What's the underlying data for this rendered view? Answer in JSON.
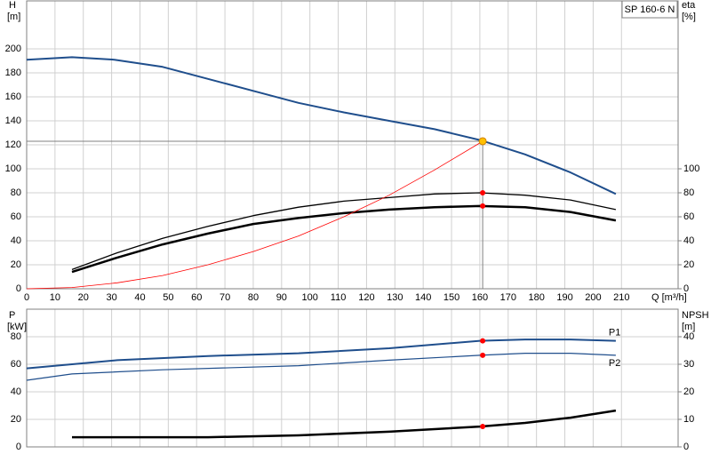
{
  "chart_data": [
    {
      "type": "line",
      "label": "SP 160-6 N",
      "ylabel": [
        "H",
        "[m]"
      ],
      "y2label": [
        "eta",
        "[%]"
      ],
      "xlabel": "Q [m³/h]",
      "xlim": [
        0,
        230
      ],
      "ylim": [
        0,
        240
      ],
      "y2lim": [
        0,
        240
      ],
      "grid": true,
      "xtick_labels": true,
      "xticks": [
        0,
        10,
        20,
        30,
        40,
        50,
        60,
        70,
        80,
        90,
        100,
        110,
        120,
        130,
        140,
        150,
        160,
        170,
        180,
        190,
        200,
        210
      ],
      "yticks": [
        0,
        20,
        40,
        60,
        80,
        100,
        120,
        140,
        160,
        180,
        200
      ],
      "y2ticks": [
        0,
        20,
        40,
        60,
        80,
        100
      ],
      "series": [
        {
          "color": "#1f4e8c",
          "x": [
            0,
            16,
            31,
            48,
            64,
            80,
            96,
            112,
            128,
            144,
            160,
            176,
            192,
            208
          ],
          "values": [
            191,
            193,
            191,
            185,
            175,
            165,
            155,
            147,
            140,
            133,
            124,
            112,
            97,
            79
          ]
        },
        {
          "color": "#000000",
          "axis": "y2",
          "x": [
            16,
            32,
            48,
            64,
            80,
            96,
            112,
            128,
            144,
            160,
            176,
            192,
            208
          ],
          "values": [
            16,
            30,
            42,
            52,
            61,
            68,
            73,
            76,
            79,
            80,
            78,
            74,
            66
          ]
        },
        {
          "color": "#000000",
          "axis": "y2",
          "x": [
            16,
            32,
            48,
            64,
            80,
            96,
            112,
            128,
            144,
            160,
            176,
            192,
            208
          ],
          "values": [
            14,
            26,
            37,
            46,
            54,
            59,
            63,
            66,
            68,
            69,
            68,
            64,
            57
          ]
        },
        {
          "color": "#ff0000",
          "x": [
            0,
            16,
            32,
            48,
            64,
            80,
            96,
            112,
            128,
            144,
            161
          ],
          "values": [
            0,
            1,
            5,
            11,
            20,
            31,
            44,
            60,
            78,
            99,
            123
          ]
        }
      ],
      "points": [
        {
          "x": 161,
          "y": 123,
          "color": "#ffc000",
          "guide": true
        },
        {
          "x": 161,
          "y": 80,
          "color": "#ff0000",
          "axis": "y2"
        },
        {
          "x": 161,
          "y": 69,
          "color": "#ff0000",
          "axis": "y2"
        }
      ]
    },
    {
      "type": "line",
      "ylabel": [
        "P",
        "[kW]"
      ],
      "y2label": [
        "NPSH",
        "[m]"
      ],
      "xlim": [
        0,
        230
      ],
      "ylim": [
        0,
        100
      ],
      "y2lim": [
        0,
        50
      ],
      "grid": true,
      "xtick_labels": false,
      "xticks": [
        0,
        10,
        20,
        30,
        40,
        50,
        60,
        70,
        80,
        90,
        100,
        110,
        120,
        130,
        140,
        150,
        160,
        170,
        180,
        190,
        200,
        210
      ],
      "yticks": [
        0,
        20,
        40,
        60,
        80
      ],
      "y2ticks": [
        0,
        10,
        20,
        30,
        40
      ],
      "series": [
        {
          "name": "P1",
          "color": "#1f4e8c",
          "x": [
            0,
            16,
            32,
            64,
            96,
            128,
            160,
            176,
            192,
            208
          ],
          "values": [
            57,
            60,
            63,
            66,
            68,
            71.6,
            77,
            78,
            78,
            77
          ]
        },
        {
          "name": "P2",
          "color": "#1f4e8c",
          "x": [
            0,
            16,
            48,
            96,
            128,
            160,
            176,
            192,
            208
          ],
          "values": [
            48.4,
            53,
            56,
            59,
            63,
            66.5,
            68,
            68,
            66.5
          ]
        },
        {
          "color": "#000000",
          "axis": "y2",
          "x": [
            16,
            64,
            96,
            128,
            160,
            176,
            192,
            208
          ],
          "values": [
            3.5,
            3.5,
            4.2,
            5.5,
            7.4,
            8.7,
            10.6,
            13.2
          ]
        }
      ],
      "points": [
        {
          "x": 161,
          "y": 77,
          "color": "#ff0000"
        },
        {
          "x": 161,
          "y": 66.5,
          "color": "#ff0000"
        },
        {
          "x": 161,
          "y": 7.4,
          "color": "#ff0000",
          "axis": "y2"
        }
      ]
    }
  ]
}
